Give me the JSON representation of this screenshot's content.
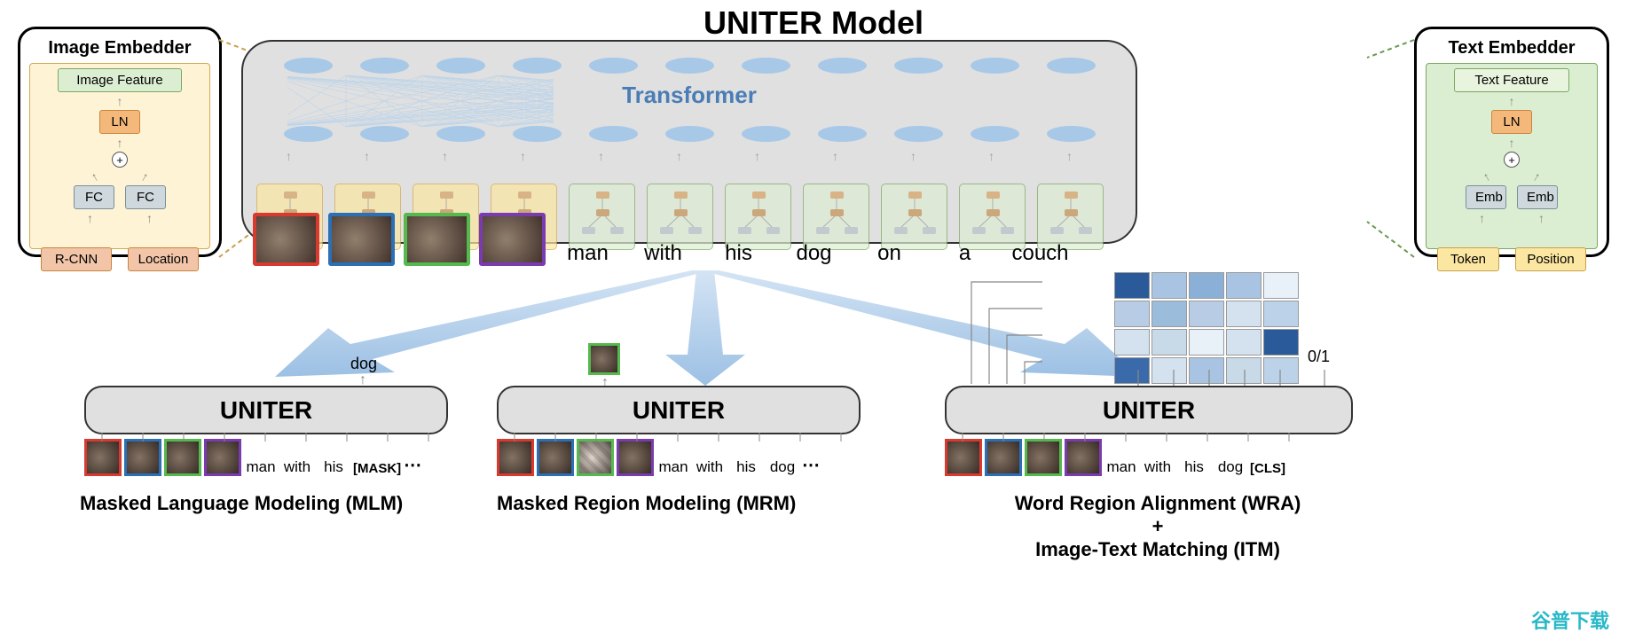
{
  "title": "UNITER Model",
  "image_embedder": {
    "title": "Image Embedder",
    "feature_label": "Image Feature",
    "ln": "LN",
    "fc1": "FC",
    "fc2": "FC",
    "rcnn": "R-CNN",
    "location": "Location"
  },
  "text_embedder": {
    "title": "Text Embedder",
    "feature_label": "Text Feature",
    "ln": "LN",
    "emb1": "Emb",
    "emb2": "Emb",
    "token": "Token",
    "position": "Position"
  },
  "transformer_label": "Transformer",
  "colors": {
    "red": "#d83a2f",
    "blue": "#2b6fb5",
    "green": "#55b94e",
    "purple": "#7a3bb0",
    "ellipse": "#a8c8e8",
    "arrow_fill": "#b8d0ec",
    "task_bg": "#e0e0e0"
  },
  "region_colors": [
    "#d83a2f",
    "#2b6fb5",
    "#55b94e",
    "#7a3bb0"
  ],
  "words": [
    "man",
    "with",
    "his",
    "dog",
    "on",
    "a",
    "couch"
  ],
  "mlm": {
    "box_label": "UNITER",
    "output": "dog",
    "tokens": [
      "man",
      "with",
      "his",
      "[MASK]",
      "..."
    ],
    "caption": "Masked Language Modeling (MLM)"
  },
  "mrm": {
    "box_label": "UNITER",
    "tokens": [
      "man",
      "with",
      "his",
      "dog",
      "..."
    ],
    "caption": "Masked Region Modeling (MRM)"
  },
  "wra": {
    "box_label": "UNITER",
    "tokens": [
      "man",
      "with",
      "his",
      "dog",
      "[CLS]"
    ],
    "caption_line1": "Word Region Alignment (WRA)",
    "caption_plus": "+",
    "caption_line2": "Image-Text Matching (ITM)",
    "binary_label": "0/1"
  },
  "heatmap": {
    "rows": 4,
    "cols": 5,
    "shades": [
      [
        "#2a5a9a",
        "#a8c4e2",
        "#8bb0d8",
        "#a8c4e2",
        "#e8f0f8"
      ],
      [
        "#b8cde5",
        "#9cbcdc",
        "#b8cde5",
        "#d4e2f0",
        "#bcd2e8"
      ],
      [
        "#d4e2f0",
        "#c8dae8",
        "#e8f0f8",
        "#d4e2f0",
        "#2a5a9a"
      ],
      [
        "#3a6aaa",
        "#d4e2f0",
        "#a8c4e2",
        "#c8dae8",
        "#bcd2e8"
      ]
    ]
  },
  "watermark": "谷普下载"
}
